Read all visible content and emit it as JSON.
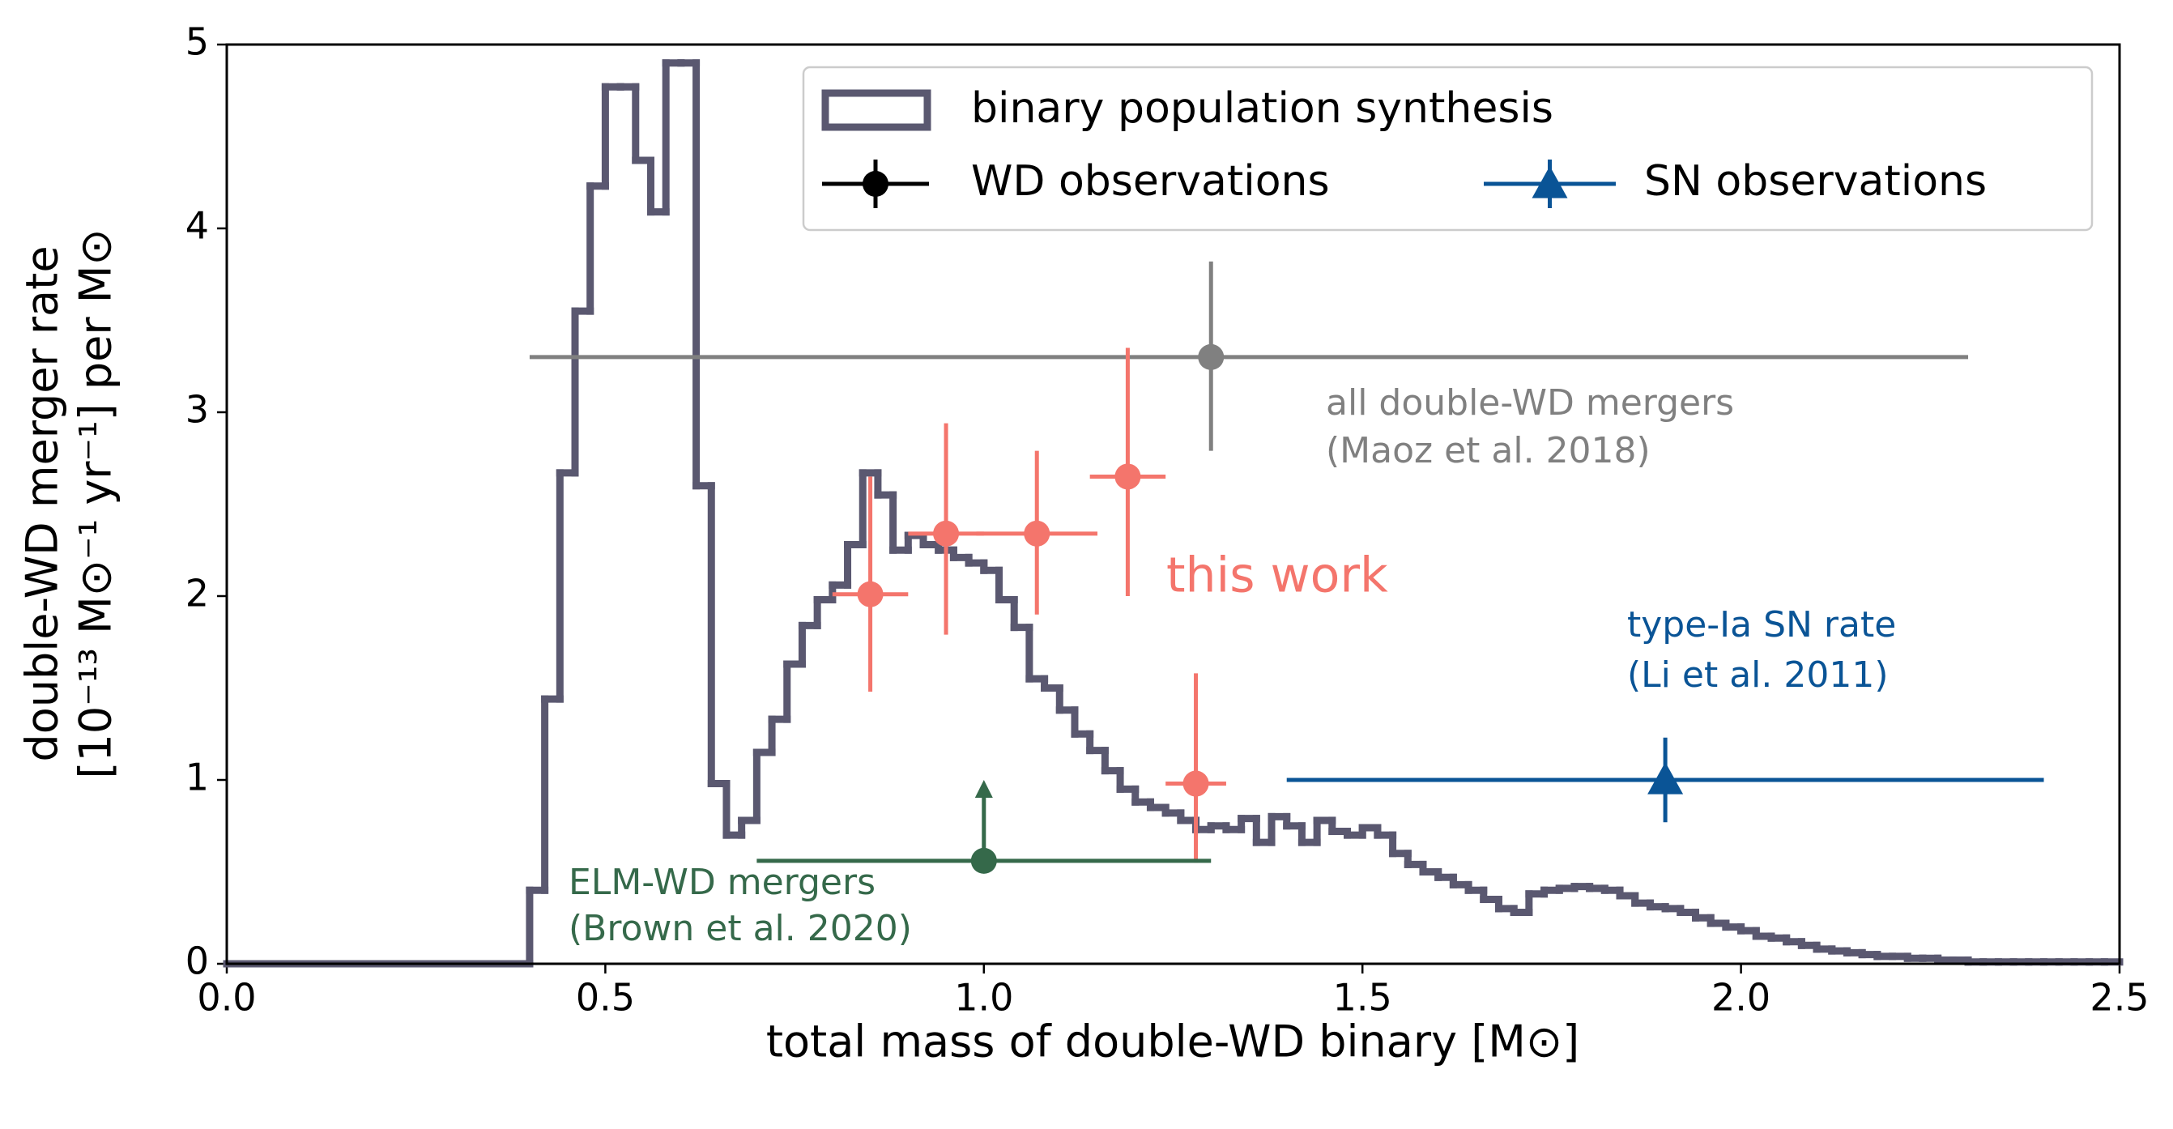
{
  "chart_data": {
    "type": "histogram",
    "x_label": "total mass of double-WD binary [M⊙]",
    "y_label": [
      "double-WD merger rate",
      "[10⁻¹³ M⊙⁻¹ yr⁻¹] per M⊙"
    ],
    "xlim": [
      0,
      2.5
    ],
    "ylim": [
      0,
      5
    ],
    "xticks": [
      {
        "value": 0,
        "label": "0.0"
      },
      0.5,
      {
        "value": 1,
        "label": "1.0"
      },
      1.5,
      {
        "value": 2,
        "label": "2.0"
      },
      2.5
    ],
    "yticks": [
      0,
      1,
      2,
      3,
      4,
      5
    ],
    "histogram": {
      "name": "binary population synthesis",
      "color": "#5a5870",
      "bins": [
        0,
        0.4,
        0.42,
        0.44,
        0.46,
        0.48,
        0.5,
        0.52,
        0.54,
        0.56,
        0.58,
        0.6,
        0.62,
        0.64,
        0.66,
        0.68,
        0.7,
        0.72,
        0.74,
        0.76,
        0.78,
        0.8,
        0.82,
        0.84,
        0.86,
        0.88,
        0.9,
        0.92,
        0.94,
        0.96,
        0.98,
        1.0,
        1.02,
        1.04,
        1.06,
        1.08,
        1.1,
        1.12,
        1.14,
        1.16,
        1.18,
        1.2,
        1.22,
        1.24,
        1.26,
        1.28,
        1.3,
        1.32,
        1.34,
        1.36,
        1.38,
        1.4,
        1.42,
        1.44,
        1.46,
        1.48,
        1.5,
        1.52,
        1.54,
        1.56,
        1.58,
        1.6,
        1.62,
        1.64,
        1.66,
        1.68,
        1.7,
        1.72,
        1.74,
        1.76,
        1.78,
        1.8,
        1.82,
        1.84,
        1.86,
        1.88,
        1.9,
        1.92,
        1.94,
        1.96,
        1.98,
        2.0,
        2.02,
        2.04,
        2.06,
        2.08,
        2.1,
        2.12,
        2.14,
        2.16,
        2.18,
        2.2,
        2.22,
        2.24,
        2.26,
        2.28,
        2.3,
        2.32,
        2.34,
        2.36,
        2.38,
        2.4,
        2.42,
        2.44,
        2.46,
        2.48,
        2.5
      ],
      "counts": [
        0,
        0.4,
        1.44,
        2.67,
        3.55,
        4.23,
        4.77,
        4.77,
        4.37,
        4.09,
        4.9,
        4.9,
        2.6,
        0.98,
        0.7,
        0.78,
        1.15,
        1.33,
        1.63,
        1.84,
        1.98,
        2.06,
        2.28,
        2.67,
        2.55,
        2.25,
        2.33,
        2.28,
        2.25,
        2.21,
        2.18,
        2.14,
        1.98,
        1.83,
        1.55,
        1.5,
        1.38,
        1.25,
        1.16,
        1.05,
        0.95,
        0.88,
        0.85,
        0.82,
        0.78,
        0.73,
        0.75,
        0.73,
        0.79,
        0.66,
        0.8,
        0.75,
        0.66,
        0.78,
        0.72,
        0.7,
        0.74,
        0.7,
        0.6,
        0.54,
        0.5,
        0.47,
        0.43,
        0.4,
        0.35,
        0.3,
        0.28,
        0.38,
        0.4,
        0.41,
        0.42,
        0.41,
        0.4,
        0.37,
        0.33,
        0.31,
        0.3,
        0.28,
        0.25,
        0.22,
        0.2,
        0.18,
        0.15,
        0.14,
        0.12,
        0.1,
        0.08,
        0.07,
        0.06,
        0.05,
        0.04,
        0.04,
        0.03,
        0.03,
        0.02,
        0.02,
        0.01,
        0.01,
        0.01,
        0.01,
        0.01,
        0.01,
        0.01,
        0.01,
        0.01,
        0.01
      ]
    },
    "observations": [
      {
        "label": [
          "all double-WD mergers",
          "(Maoz et al. 2018)"
        ],
        "color": "#808080",
        "marker": "circle",
        "x": [
          1.3
        ],
        "y": [
          3.3
        ],
        "xerr_low": [
          0.9
        ],
        "xerr_high": [
          1.0
        ],
        "yerr_low": [
          0.51
        ],
        "yerr_high": [
          0.52
        ]
      },
      {
        "label": [
          "this work"
        ],
        "color": "#f4756c",
        "marker": "circle",
        "x": [
          0.85,
          0.95,
          1.07,
          1.19,
          1.28
        ],
        "y": [
          2.01,
          2.34,
          2.34,
          2.65,
          0.98
        ],
        "xerr_low": [
          0.05,
          0.05,
          0.08,
          0.05,
          0.04
        ],
        "xerr_high": [
          0.05,
          0.05,
          0.08,
          0.05,
          0.04
        ],
        "yerr_low": [
          0.53,
          0.55,
          0.44,
          0.65,
          0.43
        ],
        "yerr_high": [
          0.64,
          0.6,
          0.45,
          0.7,
          0.6
        ]
      },
      {
        "label": [
          "type-Ia SN rate",
          "(Li et al. 2011)"
        ],
        "color": "#0a5496",
        "marker": "triangle",
        "x": [
          1.9
        ],
        "y": [
          1.0
        ],
        "xerr_low": [
          0.5
        ],
        "xerr_high": [
          0.5
        ],
        "yerr_low": [
          0.23
        ],
        "yerr_high": [
          0.23
        ]
      },
      {
        "label": [
          "ELM-WD mergers",
          "(Brown et al. 2020)"
        ],
        "color": "#35694a",
        "marker": "circle",
        "lower_limit": true,
        "x": [
          1.0
        ],
        "y": [
          0.56
        ],
        "xerr_low": [
          0.3
        ],
        "xerr_high": [
          0.3
        ],
        "yerr_low": [
          0
        ],
        "yerr_high": [
          0.44
        ]
      }
    ],
    "legend": [
      {
        "name": "WD observations",
        "color": "#000000",
        "marker": "circle"
      },
      {
        "name": "SN observations",
        "color": "#0a5496",
        "marker": "triangle"
      }
    ]
  }
}
